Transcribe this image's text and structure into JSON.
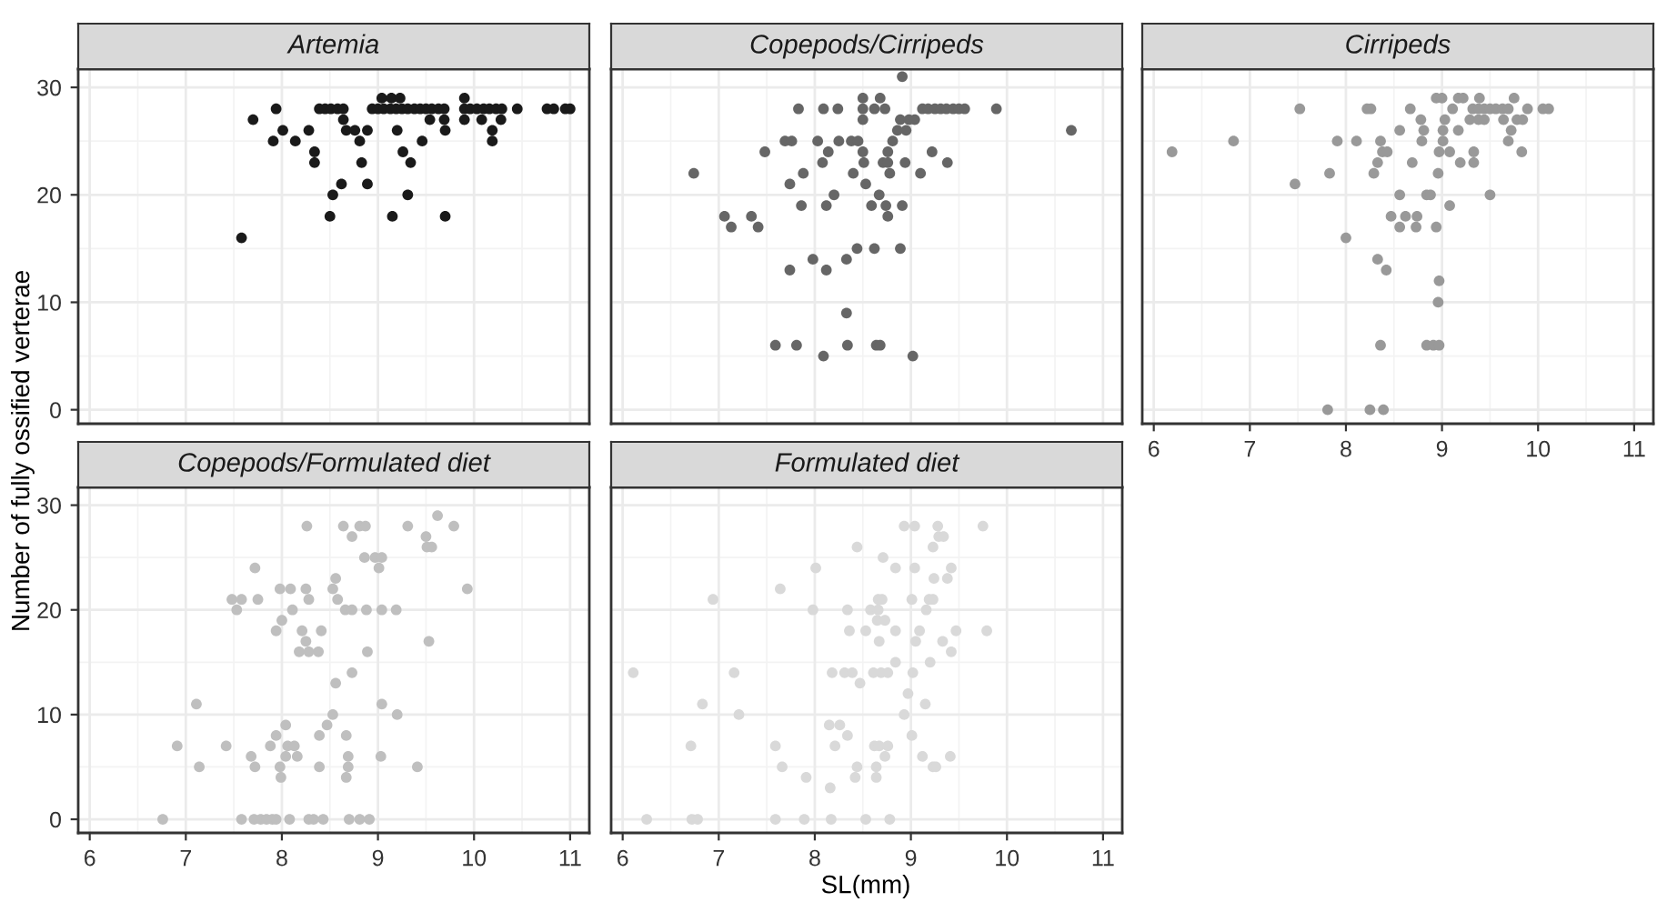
{
  "chart_data": [
    {
      "type": "scatter",
      "title": "Artemia",
      "ylabel": "Number of fully ossified verterae",
      "xlim": [
        5.88,
        11.2
      ],
      "ylim": [
        -1.3,
        31.7
      ],
      "xticks": [
        6,
        7,
        8,
        9,
        10,
        11
      ],
      "yticks": [
        0,
        10,
        20,
        30
      ],
      "grid": true,
      "marker": "circle",
      "tick_labels": "y",
      "series": [
        {
          "color": "#1a1a1a",
          "x": [
            7.58,
            7.7,
            7.94,
            8.01,
            7.91,
            8.14,
            8.28,
            8.34,
            8.34,
            8.39,
            8.45,
            8.51,
            8.58,
            8.64,
            8.64,
            8.67,
            8.76,
            8.89,
            8.81,
            8.83,
            8.89,
            8.62,
            8.53,
            8.5,
            8.94,
            9.0,
            9.06,
            9.13,
            9.19,
            9.25,
            9.31,
            9.38,
            9.44,
            9.5,
            9.56,
            9.63,
            9.69,
            9.04,
            9.14,
            9.23,
            9.2,
            9.26,
            9.34,
            9.31,
            9.15,
            9.46,
            9.54,
            9.69,
            9.7,
            9.7,
            9.9,
            9.9,
            9.96,
            10.03,
            10.1,
            10.16,
            10.23,
            10.29,
            10.45,
            9.9,
            10.08,
            10.19,
            10.19,
            10.28,
            10.76,
            10.83,
            10.95,
            11.0
          ],
          "values": [
            16,
            27,
            28,
            26,
            25,
            25,
            26,
            24,
            23,
            28,
            28,
            28,
            28,
            28,
            27,
            26,
            26,
            26,
            25,
            23,
            21,
            21,
            20,
            18,
            28,
            28,
            28,
            28,
            28,
            28,
            28,
            28,
            28,
            28,
            28,
            28,
            28,
            29,
            29,
            29,
            26,
            24,
            23,
            20,
            18,
            25,
            27,
            27,
            26,
            18,
            29,
            28,
            28,
            28,
            28,
            28,
            28,
            28,
            28,
            27,
            27,
            26,
            25,
            27,
            28,
            28,
            28,
            28
          ]
        }
      ]
    },
    {
      "type": "scatter",
      "title": "Copepods/Cirripeds",
      "xlim": [
        5.88,
        11.2
      ],
      "ylim": [
        -1.3,
        31.7
      ],
      "xticks": [
        6,
        7,
        8,
        9,
        10,
        11
      ],
      "yticks": [
        0,
        10,
        20,
        30
      ],
      "grid": true,
      "marker": "circle",
      "tick_labels": false,
      "series": [
        {
          "color": "#666666",
          "x": [
            8.91,
            8.5,
            8.68,
            7.83,
            8.09,
            8.24,
            8.5,
            8.62,
            8.73,
            8.5,
            8.89,
            8.98,
            9.04,
            8.86,
            8.95,
            9.12,
            9.18,
            9.25,
            9.31,
            9.37,
            9.44,
            9.5,
            9.56,
            9.89,
            10.67,
            8.81,
            7.48,
            7.69,
            7.76,
            8.03,
            8.25,
            8.38,
            8.45,
            8.14,
            8.5,
            8.76,
            9.22,
            8.08,
            8.51,
            8.71,
            8.76,
            8.94,
            9.38,
            6.74,
            7.88,
            8.4,
            8.78,
            9.1,
            7.74,
            8.53,
            8.2,
            8.67,
            7.86,
            8.12,
            8.59,
            8.74,
            8.91,
            8.76,
            7.06,
            7.34,
            7.13,
            7.41,
            8.44,
            8.62,
            8.89,
            7.98,
            8.33,
            7.74,
            8.12,
            8.33,
            7.59,
            7.81,
            8.34,
            8.64,
            8.68,
            8.09,
            9.02
          ],
          "values": [
            31,
            29,
            29,
            28,
            28,
            28,
            28,
            28,
            28,
            27,
            27,
            27,
            27,
            26,
            26,
            28,
            28,
            28,
            28,
            28,
            28,
            28,
            28,
            28,
            26,
            25,
            24,
            25,
            25,
            25,
            25,
            25,
            25,
            24,
            24,
            24,
            24,
            23,
            23,
            23,
            23,
            23,
            23,
            22,
            22,
            22,
            22,
            22,
            21,
            21,
            20,
            20,
            19,
            19,
            19,
            19,
            19,
            18,
            18,
            18,
            17,
            17,
            15,
            15,
            15,
            14,
            14,
            13,
            13,
            9,
            6,
            6,
            6,
            6,
            6,
            5,
            5
          ]
        }
      ]
    },
    {
      "type": "scatter",
      "title": "Cirripeds",
      "xlim": [
        5.88,
        11.2
      ],
      "ylim": [
        -1.3,
        31.7
      ],
      "xticks": [
        6,
        7,
        8,
        9,
        10,
        11
      ],
      "yticks": [
        0,
        10,
        20,
        30
      ],
      "grid": true,
      "marker": "circle",
      "tick_labels": "x",
      "series": [
        {
          "color": "#999999",
          "x": [
            8.94,
            9.0,
            9.17,
            9.22,
            9.39,
            9.75,
            7.52,
            8.22,
            8.26,
            8.67,
            9.11,
            9.32,
            9.38,
            9.44,
            9.5,
            9.56,
            9.63,
            9.69,
            9.89,
            10.05,
            10.11,
            8.78,
            9.03,
            9.29,
            9.38,
            9.44,
            9.64,
            9.78,
            9.84,
            8.56,
            8.81,
            9.01,
            9.17,
            9.72,
            6.83,
            7.91,
            8.11,
            8.36,
            8.79,
            9.01,
            9.69,
            6.19,
            8.38,
            8.43,
            8.97,
            9.08,
            9.33,
            9.83,
            8.33,
            8.69,
            9.19,
            9.33,
            7.83,
            8.29,
            8.96,
            7.47,
            8.56,
            8.84,
            8.88,
            9.5,
            9.08,
            8.47,
            8.62,
            8.74,
            8.56,
            8.73,
            8.94,
            8.0,
            8.33,
            8.42,
            8.97,
            8.96,
            8.36,
            8.84,
            8.91,
            8.97,
            7.81,
            8.25,
            8.39
          ],
          "values": [
            29,
            29,
            29,
            29,
            29,
            29,
            28,
            28,
            28,
            28,
            28,
            28,
            28,
            28,
            28,
            28,
            28,
            28,
            28,
            28,
            28,
            27,
            27,
            27,
            27,
            27,
            27,
            27,
            27,
            26,
            26,
            26,
            26,
            26,
            25,
            25,
            25,
            25,
            25,
            25,
            25,
            24,
            24,
            24,
            24,
            24,
            24,
            24,
            23,
            23,
            23,
            23,
            22,
            22,
            22,
            21,
            20,
            20,
            20,
            20,
            19,
            18,
            18,
            18,
            17,
            17,
            17,
            16,
            14,
            13,
            12,
            10,
            6,
            6,
            6,
            6,
            0,
            0,
            0
          ]
        }
      ]
    },
    {
      "type": "scatter",
      "title": "Copepods/Formulated diet",
      "xlim": [
        5.88,
        11.2
      ],
      "ylim": [
        -1.3,
        31.7
      ],
      "xticks": [
        6,
        7,
        8,
        9,
        10,
        11
      ],
      "yticks": [
        0,
        10,
        20,
        30
      ],
      "grid": true,
      "marker": "circle",
      "series": [
        {
          "color": "#bfbfbf",
          "x": [
            9.62,
            8.26,
            8.64,
            8.81,
            8.87,
            9.31,
            9.79,
            8.73,
            9.5,
            9.51,
            9.56,
            8.86,
            8.97,
            9.04,
            7.72,
            9.01,
            8.56,
            7.98,
            8.09,
            8.25,
            8.53,
            9.93,
            7.48,
            7.58,
            7.75,
            8.28,
            8.58,
            7.53,
            8.11,
            8.66,
            8.73,
            8.88,
            9.04,
            9.19,
            8.0,
            7.94,
            8.21,
            8.41,
            8.25,
            9.53,
            8.18,
            8.28,
            8.38,
            8.89,
            8.73,
            8.56,
            7.11,
            9.04,
            8.53,
            9.2,
            8.04,
            8.47,
            7.94,
            8.39,
            8.67,
            6.91,
            7.42,
            7.88,
            8.06,
            8.13,
            7.68,
            8.04,
            8.16,
            8.69,
            9.03,
            7.14,
            7.72,
            7.98,
            8.39,
            8.69,
            9.41,
            7.99,
            8.67,
            6.76,
            7.58,
            7.71,
            7.78,
            7.84,
            7.9,
            7.94,
            8.08,
            8.28,
            8.33,
            8.43,
            8.7,
            8.81,
            8.91
          ],
          "values": [
            29,
            28,
            28,
            28,
            28,
            28,
            28,
            27,
            27,
            26,
            26,
            25,
            25,
            25,
            24,
            24,
            23,
            22,
            22,
            22,
            22,
            22,
            21,
            21,
            21,
            21,
            21,
            20,
            20,
            20,
            20,
            20,
            20,
            20,
            19,
            18,
            18,
            18,
            17,
            17,
            16,
            16,
            16,
            16,
            14,
            13,
            11,
            11,
            10,
            10,
            9,
            9,
            8,
            8,
            8,
            7,
            7,
            7,
            7,
            7,
            6,
            6,
            6,
            6,
            6,
            5,
            5,
            5,
            5,
            5,
            5,
            4,
            4,
            0,
            0,
            0,
            0,
            0,
            0,
            0,
            0,
            0,
            0,
            0,
            0,
            0,
            0
          ]
        }
      ]
    },
    {
      "type": "scatter",
      "title": "Formulated diet",
      "xlabel": "SL(mm)",
      "xlim": [
        5.88,
        11.2
      ],
      "ylim": [
        -1.3,
        31.7
      ],
      "xticks": [
        6,
        7,
        8,
        9,
        10,
        11
      ],
      "yticks": [
        0,
        10,
        20,
        30
      ],
      "grid": true,
      "marker": "circle",
      "tick_labels": "x",
      "series": [
        {
          "color": "#d9d9d9",
          "x": [
            8.93,
            9.04,
            9.28,
            9.75,
            9.29,
            9.34,
            8.44,
            9.23,
            8.71,
            8.01,
            8.84,
            9.04,
            9.42,
            9.24,
            9.38,
            6.94,
            7.64,
            8.66,
            8.7,
            9.01,
            9.19,
            9.23,
            7.98,
            8.34,
            8.58,
            8.66,
            9.16,
            8.65,
            8.73,
            8.36,
            8.53,
            8.84,
            9.09,
            9.47,
            9.79,
            8.67,
            9.05,
            9.33,
            9.42,
            8.84,
            9.2,
            6.11,
            7.16,
            8.18,
            8.31,
            8.39,
            8.61,
            8.69,
            8.76,
            9.02,
            8.47,
            8.97,
            6.83,
            9.15,
            7.21,
            8.93,
            8.15,
            8.26,
            8.34,
            9.01,
            6.71,
            7.59,
            8.21,
            8.62,
            8.67,
            8.76,
            8.73,
            9.12,
            9.41,
            7.66,
            8.44,
            8.64,
            9.23,
            9.26,
            7.91,
            8.42,
            8.64,
            8.16,
            6.25,
            6.72,
            6.78,
            7.59,
            7.89,
            8.17,
            8.53,
            8.78
          ],
          "values": [
            28,
            28,
            28,
            28,
            27,
            27,
            26,
            26,
            25,
            24,
            24,
            24,
            24,
            23,
            23,
            21,
            22,
            21,
            21,
            21,
            21,
            21,
            20,
            20,
            20,
            20,
            20,
            19,
            19,
            18,
            18,
            18,
            18,
            18,
            18,
            17,
            17,
            17,
            16,
            15,
            15,
            14,
            14,
            14,
            14,
            14,
            14,
            14,
            14,
            14,
            13,
            12,
            11,
            11,
            10,
            10,
            9,
            9,
            8,
            8,
            7,
            7,
            7,
            7,
            7,
            7,
            6,
            6,
            6,
            5,
            5,
            5,
            5,
            5,
            4,
            4,
            4,
            3,
            0,
            0,
            0,
            0,
            0,
            0,
            0,
            0
          ]
        }
      ]
    }
  ]
}
